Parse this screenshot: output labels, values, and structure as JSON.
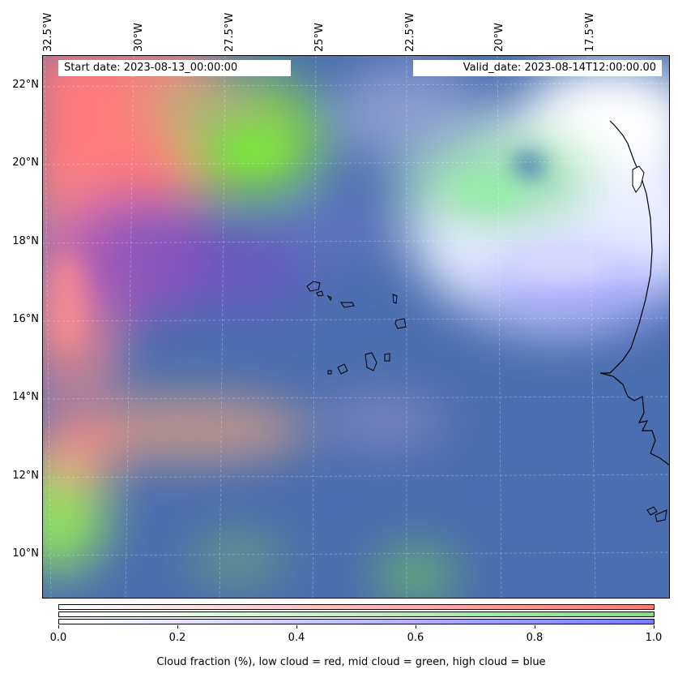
{
  "header": {
    "start_date": "Start date: 2023-08-13_00:00:00",
    "valid_date": "Valid_date: 2023-08-14T12:00:00.00"
  },
  "map": {
    "lon_labels": [
      "32.5°W",
      "30°W",
      "27.5°W",
      "25°W",
      "22.5°W",
      "20°W",
      "17.5°W"
    ],
    "lat_labels": [
      "22°N",
      "20°N",
      "18°N",
      "16°N",
      "14°N",
      "12°N",
      "10°N"
    ],
    "colors": {
      "low_cloud": "#ff7a7a",
      "mid_cloud": "#7ee07e",
      "high_cloud": "#7a7aff",
      "base": "#4a6fb0",
      "coast": "#000000"
    }
  },
  "colorbar": {
    "ticks": [
      "0.0",
      "0.2",
      "0.4",
      "0.6",
      "0.8",
      "1.0"
    ],
    "label": "Cloud fraction (%), low cloud = red, mid cloud = green, high cloud = blue"
  }
}
